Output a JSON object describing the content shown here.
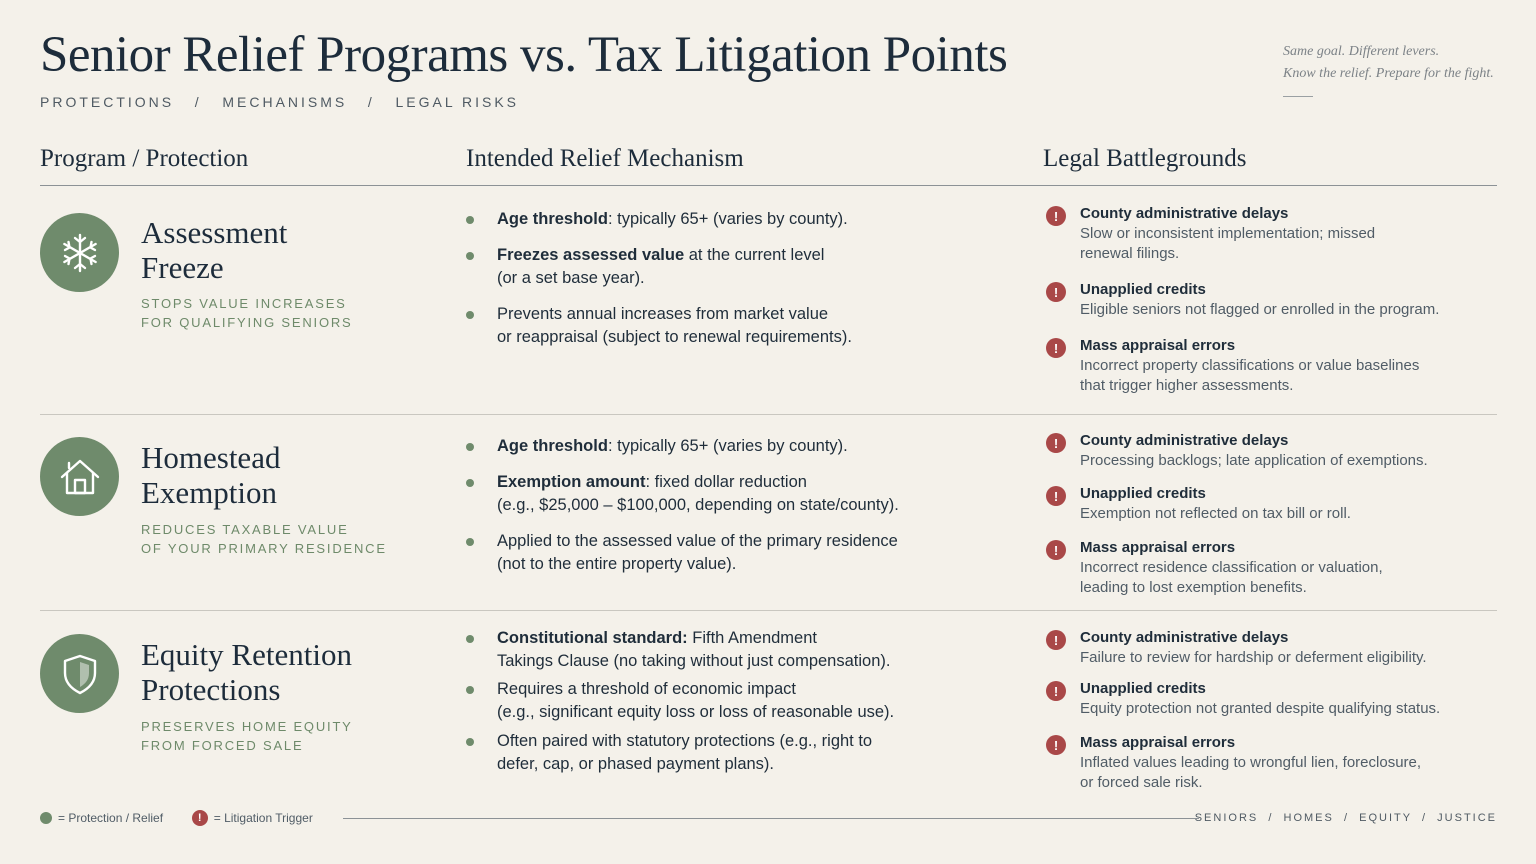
{
  "header": {
    "title": "Senior Relief Programs vs. Tax Litigation Points",
    "subtitle": "PROTECTIONS   /   MECHANISMS   /   LEGAL RISKS",
    "tagline_line1": "Same goal. Different levers.",
    "tagline_line2": "Know the relief. Prepare for the fight."
  },
  "columns": {
    "program": "Program / Protection",
    "mechanism": "Intended Relief Mechanism",
    "battlegrounds": "Legal Battlegrounds"
  },
  "rows": [
    {
      "icon": "snowflake-icon",
      "name_line1": "Assessment",
      "name_line2": "Freeze",
      "desc_line1": "STOPS VALUE INCREASES",
      "desc_line2": "FOR QUALIFYING SENIORS",
      "mechanisms": [
        {
          "bold": "Age threshold",
          "rest1": ": typically 65+ (varies by county).",
          "line2": ""
        },
        {
          "bold": "Freezes assessed value",
          "rest1": " at the current level",
          "line2": "(or a set base year)."
        },
        {
          "bold": "",
          "rest1": "Prevents annual increases from market value",
          "line2": "or reappraisal (subject to renewal requirements)."
        }
      ],
      "battlegrounds": [
        {
          "title": "County administrative delays",
          "desc1": "Slow or inconsistent implementation; missed",
          "desc2": "renewal filings."
        },
        {
          "title": "Unapplied credits",
          "desc1": "Eligible seniors not flagged or enrolled in the program.",
          "desc2": ""
        },
        {
          "title": "Mass appraisal errors",
          "desc1": "Incorrect property classifications or value baselines",
          "desc2": "that trigger higher assessments."
        }
      ]
    },
    {
      "icon": "house-icon",
      "name_line1": "Homestead",
      "name_line2": "Exemption",
      "desc_line1": "REDUCES TAXABLE VALUE",
      "desc_line2": "OF YOUR PRIMARY RESIDENCE",
      "mechanisms": [
        {
          "bold": "Age threshold",
          "rest1": ": typically 65+ (varies by county).",
          "line2": ""
        },
        {
          "bold": "Exemption amount",
          "rest1": ": fixed dollar reduction",
          "line2": "(e.g., $25,000 – $100,000, depending on state/county)."
        },
        {
          "bold": "",
          "rest1": "Applied to the assessed value of the primary residence",
          "line2": "(not to the entire property value)."
        }
      ],
      "battlegrounds": [
        {
          "title": "County administrative delays",
          "desc1": "Processing backlogs; late application of exemptions.",
          "desc2": ""
        },
        {
          "title": "Unapplied credits",
          "desc1": "Exemption not reflected on tax bill or roll.",
          "desc2": ""
        },
        {
          "title": "Mass appraisal errors",
          "desc1": "Incorrect residence classification or valuation,",
          "desc2": "leading to lost exemption benefits."
        }
      ]
    },
    {
      "icon": "shield-icon",
      "name_line1": "Equity Retention",
      "name_line2": "Protections",
      "desc_line1": "PRESERVES HOME EQUITY",
      "desc_line2": "FROM FORCED SALE",
      "mechanisms": [
        {
          "bold": "Constitutional standard:",
          "rest1": " Fifth Amendment",
          "line2": "Takings Clause (no taking without just compensation)."
        },
        {
          "bold": "",
          "rest1": "Requires a threshold of economic impact",
          "line2": "(e.g., significant equity loss or loss of reasonable use)."
        },
        {
          "bold": "",
          "rest1": "Often paired with statutory protections (e.g., right to",
          "line2": "defer, cap, or phased payment plans)."
        }
      ],
      "battlegrounds": [
        {
          "title": "County administrative delays",
          "desc1": "Failure to review for hardship or deferment eligibility.",
          "desc2": ""
        },
        {
          "title": "Unapplied credits",
          "desc1": "Equity protection not granted despite qualifying status.",
          "desc2": ""
        },
        {
          "title": "Mass appraisal errors",
          "desc1": "Inflated values leading to wrongful lien, foreclosure,",
          "desc2": "or forced sale risk."
        }
      ]
    }
  ],
  "legend": {
    "protection": "= Protection / Relief",
    "litigation": "= Litigation Trigger",
    "warn_glyph": "!"
  },
  "footer": {
    "tags": "SENIORS  /  HOMES  /  EQUITY  /  JUSTICE"
  },
  "colors": {
    "background": "#f4f1ea",
    "accent_green": "#6f8b6c",
    "warning_red": "#a94848",
    "heading_navy": "#1d2c3b"
  }
}
